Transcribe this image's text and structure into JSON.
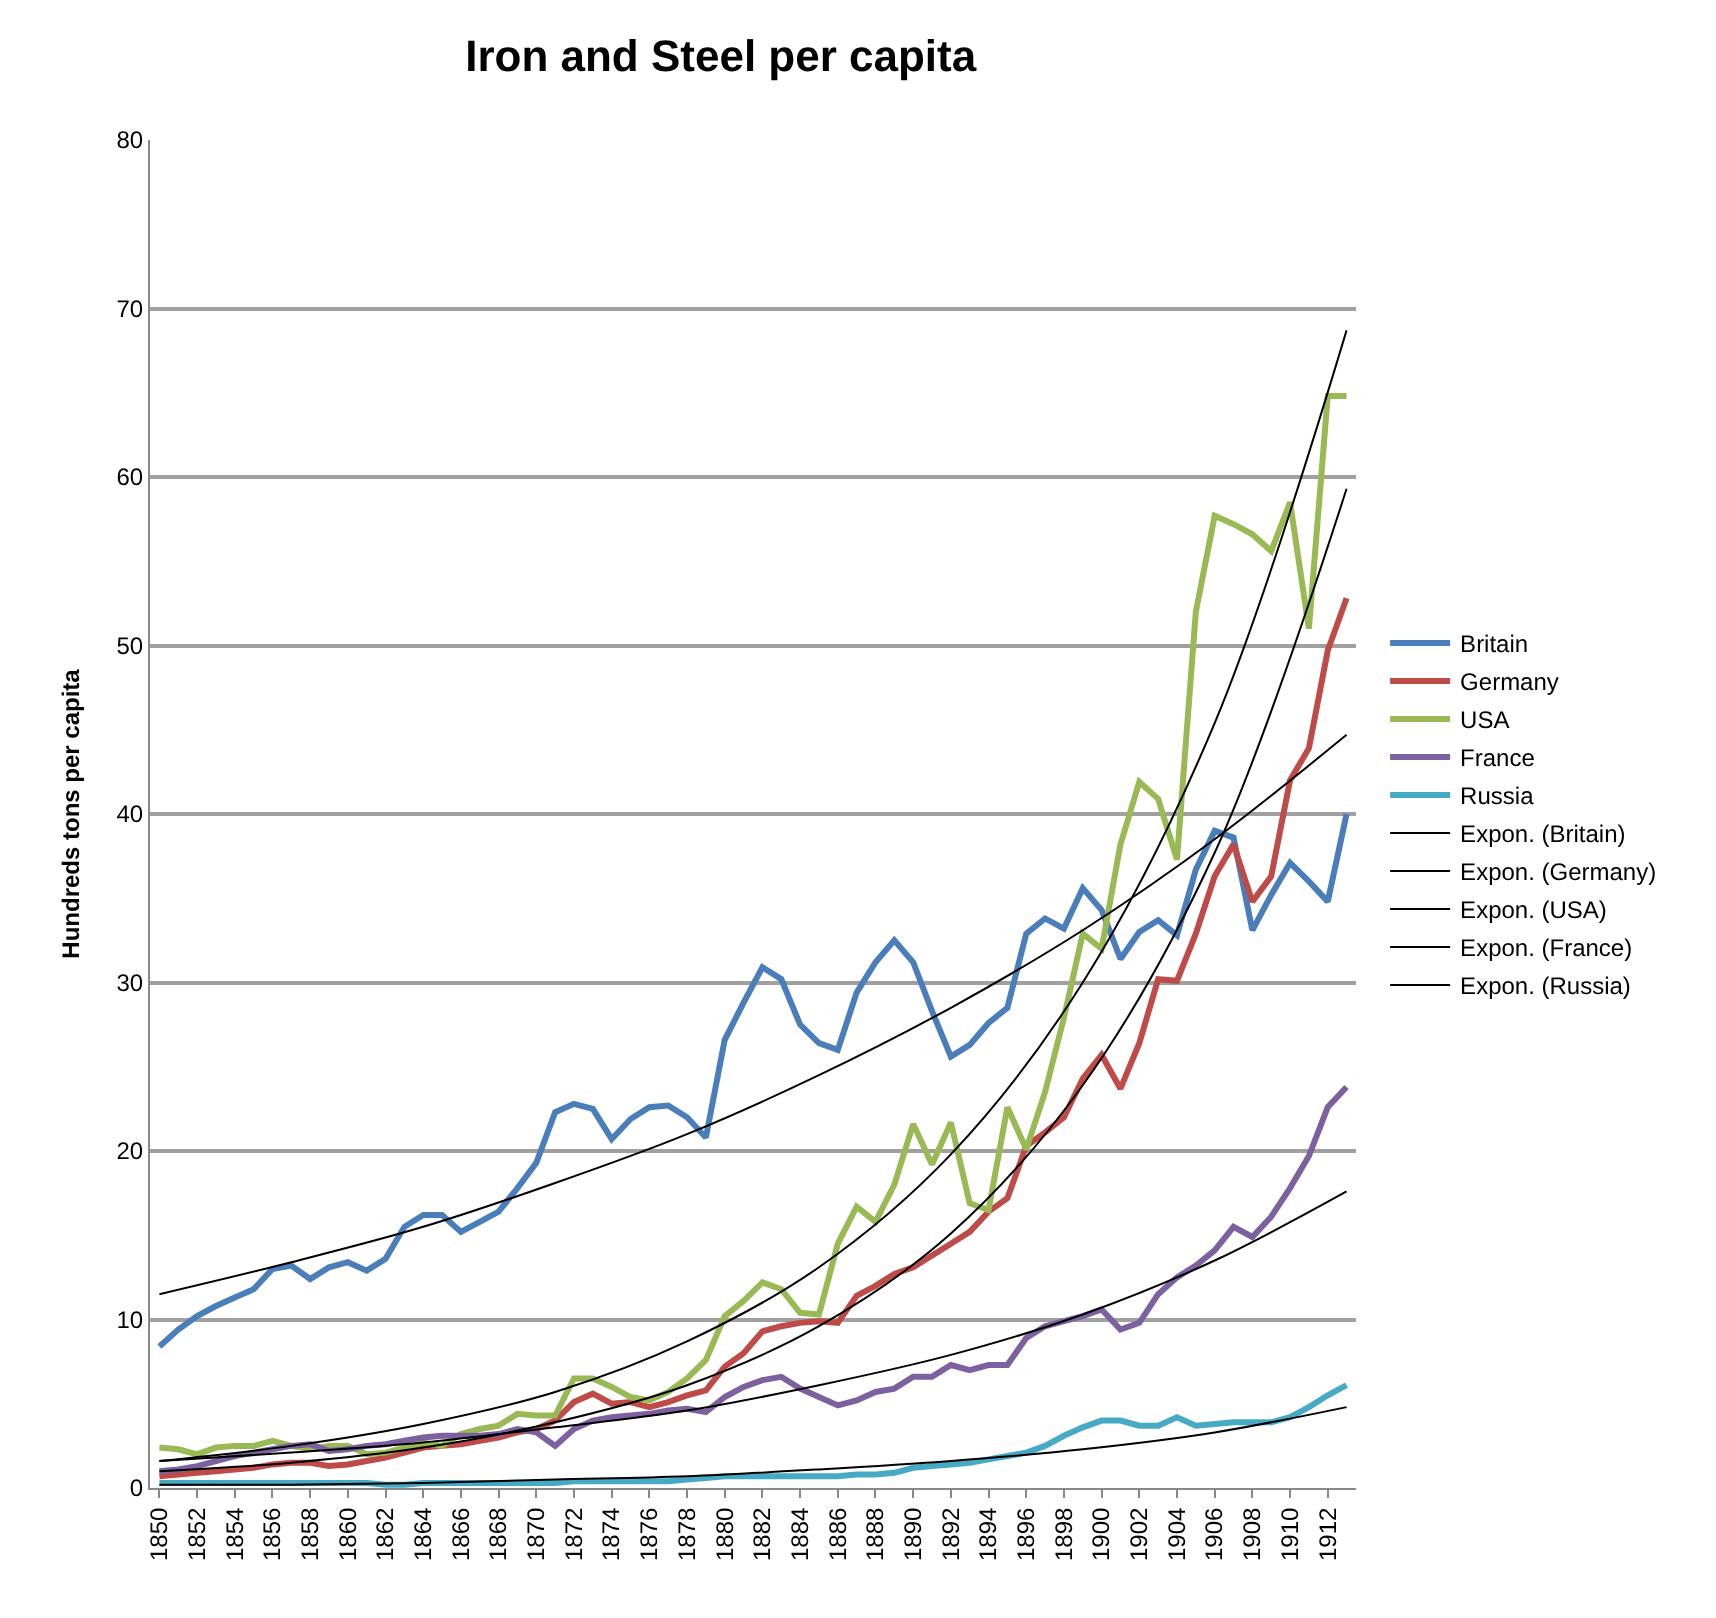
{
  "chart_data": {
    "type": "line",
    "title": "Iron and Steel per capita",
    "ylabel": "Hundreds tons per capita",
    "x": [
      1850,
      1851,
      1852,
      1853,
      1854,
      1855,
      1856,
      1857,
      1858,
      1859,
      1860,
      1861,
      1862,
      1863,
      1864,
      1865,
      1866,
      1867,
      1868,
      1869,
      1870,
      1871,
      1872,
      1873,
      1874,
      1875,
      1876,
      1877,
      1878,
      1879,
      1880,
      1881,
      1882,
      1883,
      1884,
      1885,
      1886,
      1887,
      1888,
      1889,
      1890,
      1891,
      1892,
      1893,
      1894,
      1895,
      1896,
      1897,
      1898,
      1899,
      1900,
      1901,
      1902,
      1903,
      1904,
      1905,
      1906,
      1907,
      1908,
      1909,
      1910,
      1911,
      1912,
      1913
    ],
    "xlim": [
      1849.5,
      1913.5
    ],
    "xticks": [
      1850,
      1852,
      1854,
      1856,
      1858,
      1860,
      1862,
      1864,
      1866,
      1868,
      1870,
      1872,
      1874,
      1876,
      1878,
      1880,
      1882,
      1884,
      1886,
      1888,
      1890,
      1892,
      1894,
      1896,
      1898,
      1900,
      1902,
      1904,
      1906,
      1908,
      1910,
      1912
    ],
    "ylim": [
      0,
      80
    ],
    "yticks": [
      0,
      10,
      20,
      30,
      40,
      50,
      60,
      70,
      80
    ],
    "grid": "y",
    "legend": "right",
    "marker": "none",
    "line_style": "solid",
    "series": [
      {
        "name": "Britain",
        "color": "#4a7ebb",
        "values": [
          8.4,
          9.4,
          10.2,
          10.8,
          11.3,
          11.8,
          13.0,
          13.2,
          12.4,
          13.1,
          13.4,
          12.9,
          13.6,
          15.5,
          16.2,
          16.2,
          15.2,
          15.8,
          16.4,
          17.8,
          19.3,
          22.3,
          22.8,
          22.5,
          20.7,
          21.9,
          22.6,
          22.7,
          22.0,
          20.8,
          26.6,
          28.8,
          30.9,
          30.2,
          27.5,
          26.4,
          26.0,
          29.4,
          31.2,
          32.5,
          31.2,
          28.3,
          25.6,
          26.3,
          27.6,
          28.5,
          32.9,
          33.8,
          33.2,
          35.6,
          34.3,
          31.4,
          33.0,
          33.7,
          32.8,
          36.7,
          39.0,
          38.6,
          33.1,
          35.2,
          37.1,
          36.0,
          34.8,
          40.0
        ]
      },
      {
        "name": "Germany",
        "color": "#be4b48",
        "values": [
          0.7,
          0.8,
          0.9,
          1.0,
          1.1,
          1.2,
          1.4,
          1.5,
          1.5,
          1.3,
          1.4,
          1.6,
          1.8,
          2.1,
          2.4,
          2.5,
          2.6,
          2.8,
          3.0,
          3.3,
          3.5,
          4.0,
          5.1,
          5.6,
          5.0,
          5.1,
          4.8,
          5.1,
          5.5,
          5.8,
          7.2,
          8.0,
          9.3,
          9.6,
          9.8,
          9.9,
          9.8,
          11.4,
          12.0,
          12.7,
          13.1,
          13.8,
          14.5,
          15.2,
          16.4,
          17.2,
          20.3,
          21.1,
          22.0,
          24.3,
          25.7,
          23.7,
          26.4,
          30.2,
          30.1,
          32.9,
          36.3,
          38.2,
          34.8,
          36.3,
          42.0,
          43.9,
          49.7,
          52.8
        ]
      },
      {
        "name": "USA",
        "color": "#98b954",
        "values": [
          2.4,
          2.3,
          2.0,
          2.4,
          2.5,
          2.5,
          2.8,
          2.5,
          2.3,
          2.5,
          2.5,
          2.0,
          2.1,
          2.4,
          2.7,
          2.5,
          3.2,
          3.5,
          3.7,
          4.4,
          4.3,
          4.3,
          6.5,
          6.5,
          6.0,
          5.4,
          5.2,
          5.7,
          6.5,
          7.6,
          10.2,
          11.1,
          12.2,
          11.8,
          10.4,
          10.3,
          14.5,
          16.7,
          15.8,
          18.0,
          21.6,
          19.2,
          21.7,
          16.9,
          16.5,
          22.6,
          20.1,
          23.5,
          27.9,
          32.9,
          32.0,
          38.2,
          41.9,
          40.9,
          37.3,
          52.0,
          57.7,
          57.2,
          56.6,
          55.6,
          58.5,
          51.0,
          64.8,
          64.8
        ]
      },
      {
        "name": "France",
        "color": "#7d60a0",
        "values": [
          1.0,
          1.1,
          1.3,
          1.6,
          1.9,
          2.1,
          2.3,
          2.5,
          2.6,
          2.2,
          2.3,
          2.5,
          2.6,
          2.8,
          3.0,
          3.1,
          3.1,
          3.1,
          3.2,
          3.5,
          3.3,
          2.5,
          3.5,
          4.0,
          4.2,
          4.3,
          4.4,
          4.6,
          4.7,
          4.5,
          5.4,
          6.0,
          6.4,
          6.6,
          5.9,
          5.4,
          4.9,
          5.2,
          5.7,
          5.9,
          6.6,
          6.6,
          7.3,
          7.0,
          7.3,
          7.3,
          8.9,
          9.6,
          9.9,
          10.2,
          10.6,
          9.4,
          9.8,
          11.5,
          12.5,
          13.2,
          14.1,
          15.5,
          14.9,
          16.1,
          17.8,
          19.7,
          22.6,
          23.8
        ]
      },
      {
        "name": "Russia",
        "color": "#46aac5",
        "values": [
          0.3,
          0.3,
          0.3,
          0.3,
          0.3,
          0.3,
          0.3,
          0.3,
          0.3,
          0.3,
          0.3,
          0.3,
          0.2,
          0.2,
          0.3,
          0.3,
          0.3,
          0.3,
          0.3,
          0.3,
          0.3,
          0.3,
          0.4,
          0.4,
          0.4,
          0.4,
          0.4,
          0.4,
          0.5,
          0.6,
          0.7,
          0.7,
          0.7,
          0.7,
          0.7,
          0.7,
          0.7,
          0.8,
          0.8,
          0.9,
          1.2,
          1.3,
          1.4,
          1.5,
          1.7,
          1.9,
          2.1,
          2.5,
          3.1,
          3.6,
          4.0,
          4.0,
          3.7,
          3.7,
          4.2,
          3.7,
          3.8,
          3.9,
          3.9,
          3.9,
          4.2,
          4.8,
          5.5,
          6.1
        ]
      },
      {
        "name": "Expon. (Britain)",
        "color": "#000000",
        "x": [
          1850,
          1857,
          1864,
          1871,
          1878,
          1885,
          1892,
          1899,
          1906,
          1913
        ],
        "values": [
          11.5,
          13.4,
          15.5,
          18.1,
          21.0,
          24.5,
          28.5,
          33.1,
          38.5,
          44.7
        ]
      },
      {
        "name": "Expon. (Germany)",
        "color": "#000000",
        "x": [
          1850,
          1857,
          1864,
          1871,
          1878,
          1885,
          1892,
          1899,
          1906,
          1913
        ],
        "values": [
          1.0,
          1.5,
          2.4,
          3.9,
          6.1,
          9.6,
          15.1,
          23.9,
          37.7,
          59.3
        ]
      },
      {
        "name": "Expon. (USA)",
        "color": "#000000",
        "x": [
          1850,
          1857,
          1864,
          1871,
          1878,
          1885,
          1892,
          1899,
          1906,
          1913
        ],
        "values": [
          1.6,
          2.5,
          3.8,
          5.7,
          8.7,
          13.1,
          19.8,
          30.0,
          45.4,
          68.7
        ]
      },
      {
        "name": "Expon. (France)",
        "color": "#000000",
        "x": [
          1850,
          1857,
          1864,
          1871,
          1878,
          1885,
          1892,
          1899,
          1906,
          1913
        ],
        "values": [
          1.6,
          2.1,
          2.7,
          3.6,
          4.6,
          6.1,
          7.9,
          10.3,
          13.5,
          17.6
        ]
      },
      {
        "name": "Expon. (Russia)",
        "color": "#000000",
        "x": [
          1850,
          1857,
          1864,
          1871,
          1878,
          1885,
          1892,
          1899,
          1906,
          1913
        ],
        "values": [
          0.2,
          0.2,
          0.3,
          0.5,
          0.7,
          1.1,
          1.6,
          2.3,
          3.3,
          4.8
        ]
      }
    ]
  }
}
